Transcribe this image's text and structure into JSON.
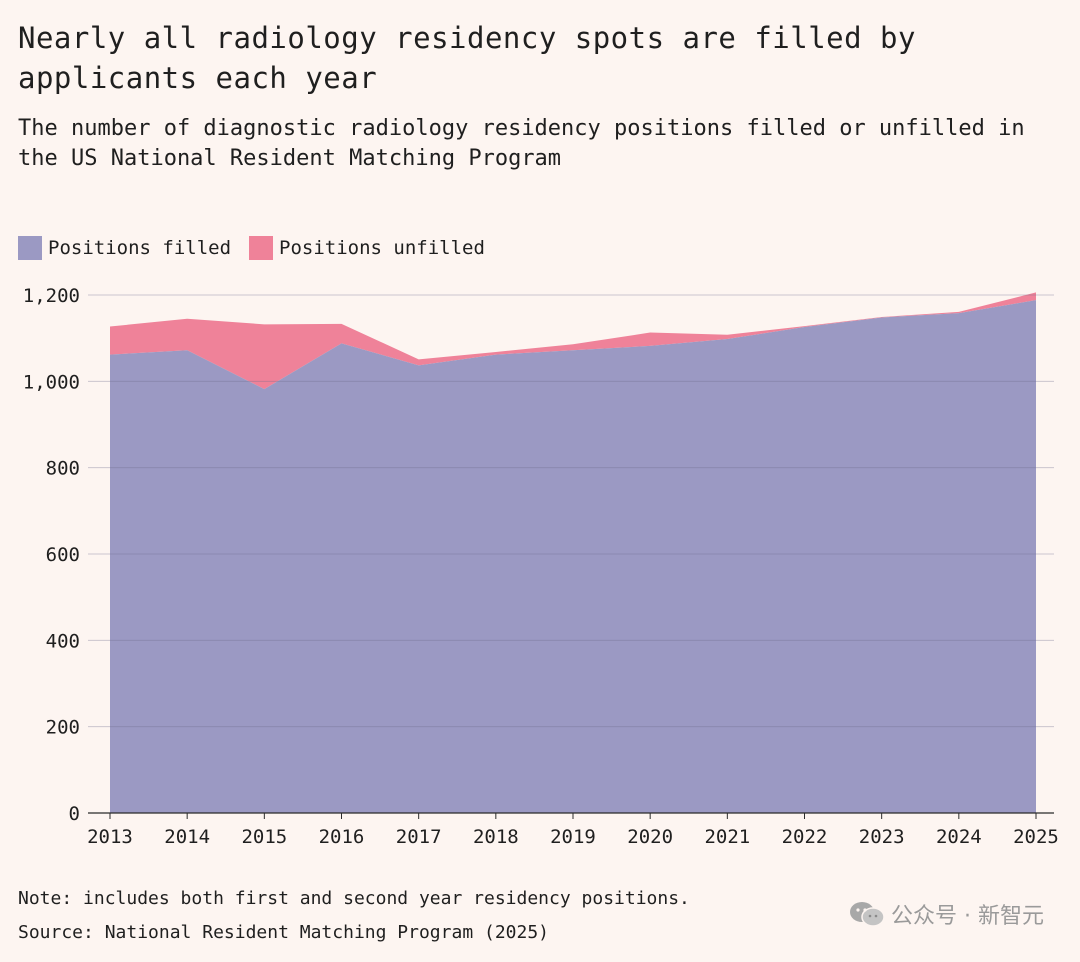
{
  "title": "Nearly all radiology residency spots are filled by applicants each year",
  "subtitle": "The number of diagnostic radiology residency positions filled or unfilled in the US National Resident Matching Program",
  "legend": {
    "filled": "Positions filled",
    "unfilled": "Positions unfilled"
  },
  "colors": {
    "filled": "#9b99c3",
    "unfilled": "#ef8299",
    "background": "#fdf5f1"
  },
  "note": "Note: includes both first and second year residency positions.",
  "source": "Source: National Resident Matching Program (2025)",
  "watermark": {
    "text": "公众号 · 新智元",
    "icon": "wechat-icon"
  },
  "chart_data": {
    "type": "area",
    "stacked": true,
    "x": [
      "2013",
      "2014",
      "2015",
      "2016",
      "2017",
      "2018",
      "2019",
      "2020",
      "2021",
      "2022",
      "2023",
      "2024",
      "2025"
    ],
    "series": [
      {
        "name": "Positions filled",
        "values": [
          1062,
          1072,
          982,
          1088,
          1037,
          1062,
          1072,
          1082,
          1098,
          1126,
          1148,
          1158,
          1188
        ]
      },
      {
        "name": "Positions unfilled",
        "values": [
          65,
          73,
          150,
          45,
          14,
          6,
          14,
          31,
          10,
          2,
          1,
          3,
          18
        ]
      }
    ],
    "yticks": [
      0,
      200,
      400,
      600,
      800,
      1000,
      1200
    ],
    "ytick_labels": [
      "0",
      "200",
      "400",
      "600",
      "800",
      "1,000",
      "1,200"
    ],
    "ylim": [
      0,
      1200
    ],
    "grid": true
  }
}
